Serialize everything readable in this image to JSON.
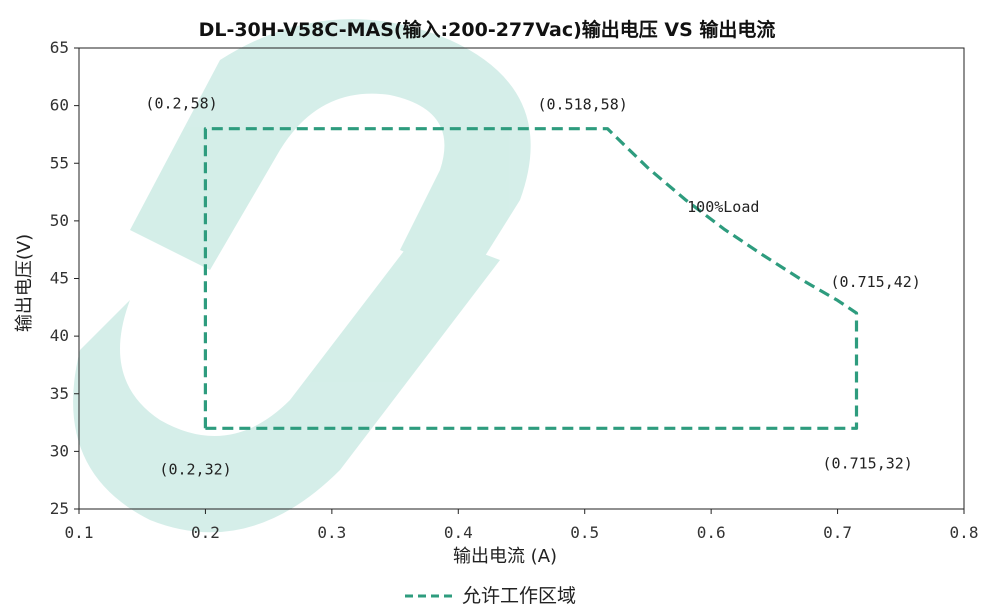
{
  "chart_data": {
    "type": "line",
    "title": "DL-30H-V58C-MAS(输入:200-277Vac)输出电压 VS 输出电流",
    "xlabel": "输出电流 (A)",
    "ylabel": "输出电压(V)",
    "xlim": [
      0.1,
      0.8
    ],
    "ylim": [
      25,
      65
    ],
    "x_ticks": [
      "0.1",
      "0.2",
      "0.3",
      "0.4",
      "0.5",
      "0.6",
      "0.7",
      "0.8"
    ],
    "y_ticks": [
      "25",
      "30",
      "35",
      "40",
      "45",
      "50",
      "55",
      "60",
      "65"
    ],
    "grid": false,
    "legend_position": "bottom",
    "series": [
      {
        "name": "允许工作区域",
        "color": "#2e9c7e",
        "style": "dashed",
        "points": [
          {
            "x": 0.2,
            "y": 32
          },
          {
            "x": 0.2,
            "y": 58
          },
          {
            "x": 0.518,
            "y": 58
          },
          {
            "x": 0.55,
            "y": 54.6
          },
          {
            "x": 0.58,
            "y": 51.8
          },
          {
            "x": 0.61,
            "y": 49.3
          },
          {
            "x": 0.64,
            "y": 47.1
          },
          {
            "x": 0.67,
            "y": 45.0
          },
          {
            "x": 0.7,
            "y": 43.1
          },
          {
            "x": 0.715,
            "y": 42
          },
          {
            "x": 0.715,
            "y": 32
          },
          {
            "x": 0.2,
            "y": 32
          }
        ]
      }
    ],
    "annotations": [
      {
        "text": "(0.2,58)",
        "x": 0.2,
        "y": 58
      },
      {
        "text": "(0.518,58)",
        "x": 0.518,
        "y": 58
      },
      {
        "text": "100%Load",
        "x": 0.6,
        "y": 50
      },
      {
        "text": "(0.715,42)",
        "x": 0.715,
        "y": 42
      },
      {
        "text": "(0.2,32)",
        "x": 0.2,
        "y": 32
      },
      {
        "text": "(0.715,32)",
        "x": 0.715,
        "y": 32
      }
    ],
    "watermark_color": "#3fb39a"
  }
}
